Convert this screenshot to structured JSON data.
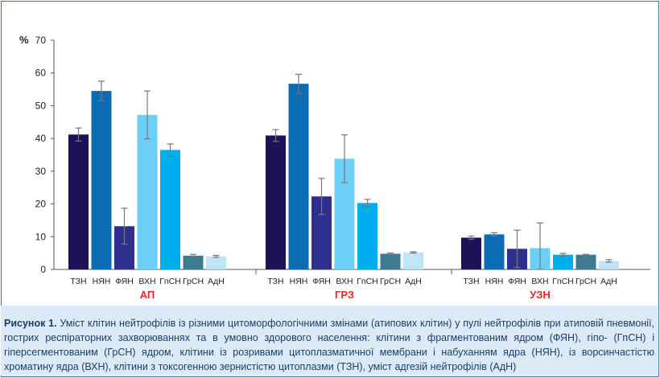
{
  "chart_data": {
    "type": "bar",
    "y_unit_label": "%",
    "ylim": [
      0,
      70
    ],
    "yticks": [
      0,
      10,
      20,
      30,
      40,
      50,
      60,
      70
    ],
    "categories": [
      "ТЗН",
      "НЯН",
      "ФЯН",
      "ВХН",
      "ГпСН",
      "ГрСН",
      "АдН"
    ],
    "category_colors": [
      "#1b1356",
      "#0a6cb3",
      "#2e2f8e",
      "#6ccff6",
      "#00aeef",
      "#3e7a92",
      "#bfe5f8"
    ],
    "groups": [
      {
        "name": "АП",
        "values": [
          41.2,
          54.5,
          13.2,
          47.2,
          36.5,
          4.2,
          4.0
        ],
        "errors": [
          2.0,
          3.0,
          5.5,
          7.3,
          1.8,
          0.4,
          0.3
        ]
      },
      {
        "name": "ГРЗ",
        "values": [
          40.9,
          56.7,
          22.3,
          33.8,
          20.3,
          4.8,
          5.2
        ],
        "errors": [
          1.8,
          2.9,
          5.5,
          7.3,
          1.1,
          0.2,
          0.2
        ]
      },
      {
        "name": "УЗН",
        "values": [
          9.7,
          10.7,
          6.3,
          6.5,
          4.5,
          4.5,
          2.6
        ],
        "errors": [
          0.5,
          0.5,
          5.7,
          7.7,
          0.4,
          0.1,
          0.4
        ]
      }
    ],
    "grid": false,
    "legend": "none"
  },
  "caption": {
    "label": "Рисунок 1.",
    "text": "Уміст клітин нейтрофілів із різними цитоморфологічними змінами (атипових клітин) у пулі нейтрофілів при атиповій пневмонії, гострих респіраторних захворюваннях та в умовно здорового населення: клітини з фрагментованим ядром (ФЯН), гіпо- (ГпСН) і гіперсегментованим (ГрСН) ядром, клітини із розривами цитоплазматичної мембрани і набуханням ядра (НЯН), із ворсинчастістю хроматину ядра (ВХН), клітини з токсогенною зернистістю цитоплазми (ТЗН), уміст адгезій нейтрофілів (АдН)"
  },
  "colors": {
    "frame": "#2b73b6",
    "caption_bg": "#dce9f6",
    "group_label": "#e8262a",
    "axis": "#555555",
    "error_bar": "#777777"
  }
}
